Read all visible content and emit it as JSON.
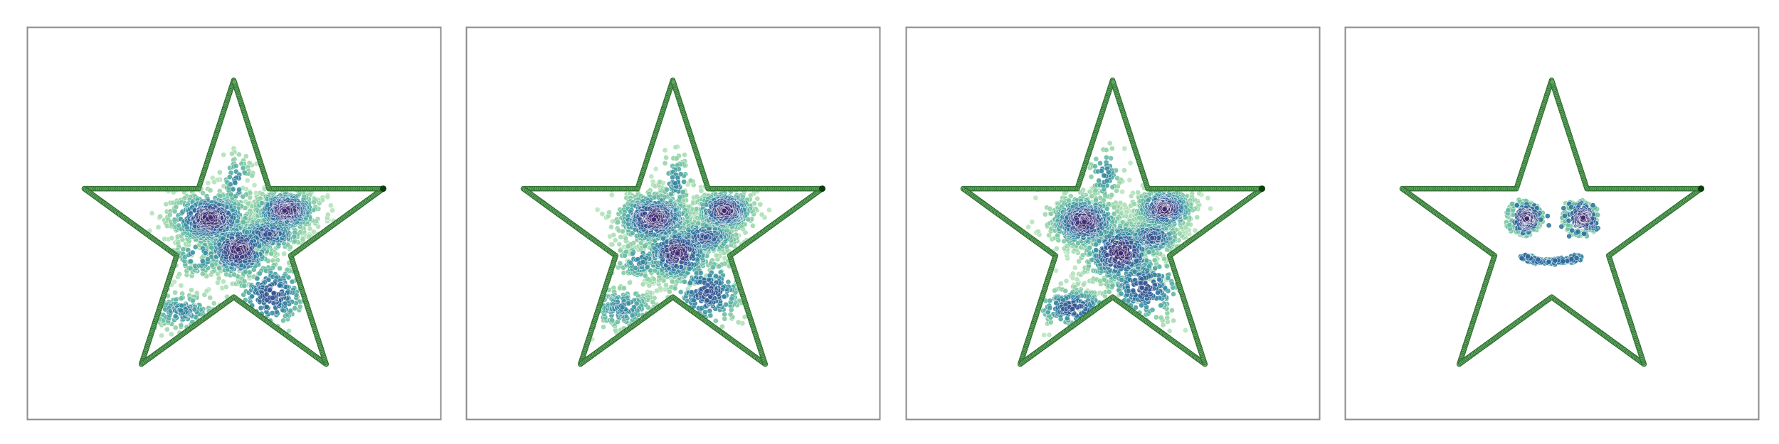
{
  "colors": {
    "background": "#ffffff",
    "frame": "#8c8c8c",
    "outline_fill": "#5fa863",
    "outline_edge": "#2e6b2e",
    "tip_marker": "#0b3d0b",
    "cloud_colormap": [
      "#bde7c1",
      "#8fd1a4",
      "#5bb5a2",
      "#3a8fa3",
      "#2c6c9c",
      "#3b4a8c",
      "#3f2a6e"
    ]
  },
  "chart_data": [
    {
      "type": "scatter",
      "panel": 1,
      "shape": "star",
      "series": [
        {
          "role": "outline",
          "density": "uniform"
        },
        {
          "role": "points",
          "clusters": [
            {
              "x": -0.15,
              "y": 0.12,
              "sx": 0.14,
              "sy": 0.09,
              "n": 620
            },
            {
              "x": 0.33,
              "y": 0.17,
              "sx": 0.11,
              "sy": 0.07,
              "n": 480
            },
            {
              "x": 0.22,
              "y": 0.02,
              "sx": 0.12,
              "sy": 0.06,
              "n": 300
            },
            {
              "x": 0.03,
              "y": -0.08,
              "sx": 0.12,
              "sy": 0.1,
              "n": 420
            },
            {
              "x": 0.24,
              "y": -0.37,
              "sx": 0.13,
              "sy": 0.12,
              "n": 260
            },
            {
              "x": -0.33,
              "y": -0.47,
              "sx": 0.13,
              "sy": 0.07,
              "n": 220
            },
            {
              "x": -0.22,
              "y": -0.12,
              "sx": 0.1,
              "sy": 0.08,
              "n": 110
            },
            {
              "x": 0.02,
              "y": 0.35,
              "sx": 0.06,
              "sy": 0.1,
              "n": 70
            }
          ]
        }
      ]
    },
    {
      "type": "scatter",
      "panel": 2,
      "shape": "star",
      "series": [
        {
          "role": "outline",
          "density": "uniform"
        },
        {
          "role": "points",
          "clusters": [
            {
              "x": -0.12,
              "y": 0.12,
              "sx": 0.13,
              "sy": 0.09,
              "n": 620
            },
            {
              "x": 0.33,
              "y": 0.17,
              "sx": 0.1,
              "sy": 0.07,
              "n": 480
            },
            {
              "x": 0.2,
              "y": 0.0,
              "sx": 0.12,
              "sy": 0.06,
              "n": 300
            },
            {
              "x": 0.03,
              "y": -0.1,
              "sx": 0.12,
              "sy": 0.1,
              "n": 420
            },
            {
              "x": 0.22,
              "y": -0.35,
              "sx": 0.13,
              "sy": 0.12,
              "n": 260
            },
            {
              "x": -0.32,
              "y": -0.45,
              "sx": 0.13,
              "sy": 0.08,
              "n": 240
            },
            {
              "x": -0.2,
              "y": -0.15,
              "sx": 0.1,
              "sy": 0.08,
              "n": 110
            },
            {
              "x": 0.02,
              "y": 0.35,
              "sx": 0.06,
              "sy": 0.1,
              "n": 80
            }
          ]
        }
      ]
    },
    {
      "type": "scatter",
      "panel": 3,
      "shape": "star",
      "series": [
        {
          "role": "outline",
          "density": "uniform"
        },
        {
          "role": "points",
          "clusters": [
            {
              "x": -0.18,
              "y": 0.1,
              "sx": 0.12,
              "sy": 0.09,
              "n": 600
            },
            {
              "x": 0.33,
              "y": 0.18,
              "sx": 0.1,
              "sy": 0.07,
              "n": 500
            },
            {
              "x": 0.25,
              "y": 0.0,
              "sx": 0.1,
              "sy": 0.06,
              "n": 280
            },
            {
              "x": 0.05,
              "y": -0.1,
              "sx": 0.13,
              "sy": 0.11,
              "n": 420
            },
            {
              "x": 0.2,
              "y": -0.32,
              "sx": 0.14,
              "sy": 0.12,
              "n": 260
            },
            {
              "x": -0.25,
              "y": -0.45,
              "sx": 0.14,
              "sy": 0.07,
              "n": 260
            },
            {
              "x": -0.05,
              "y": 0.4,
              "sx": 0.06,
              "sy": 0.1,
              "n": 70
            }
          ]
        }
      ]
    },
    {
      "type": "scatter",
      "panel": 4,
      "shape": "star",
      "series": [
        {
          "role": "outline",
          "density": "uniform"
        },
        {
          "role": "points",
          "clusters": [
            {
              "kind": "ring",
              "x": -0.18,
              "y": 0.12,
              "r": 0.1,
              "n": 120
            },
            {
              "kind": "blob",
              "x": -0.16,
              "y": 0.12,
              "sx": 0.04,
              "sy": 0.04,
              "n": 160
            },
            {
              "kind": "ring",
              "x": 0.18,
              "y": 0.12,
              "r": 0.1,
              "n": 120
            },
            {
              "kind": "blob",
              "x": 0.2,
              "y": 0.12,
              "sx": 0.04,
              "sy": 0.04,
              "n": 160
            },
            {
              "kind": "arc",
              "x": 0.0,
              "y": -0.22,
              "n": 260
            }
          ]
        }
      ]
    }
  ]
}
